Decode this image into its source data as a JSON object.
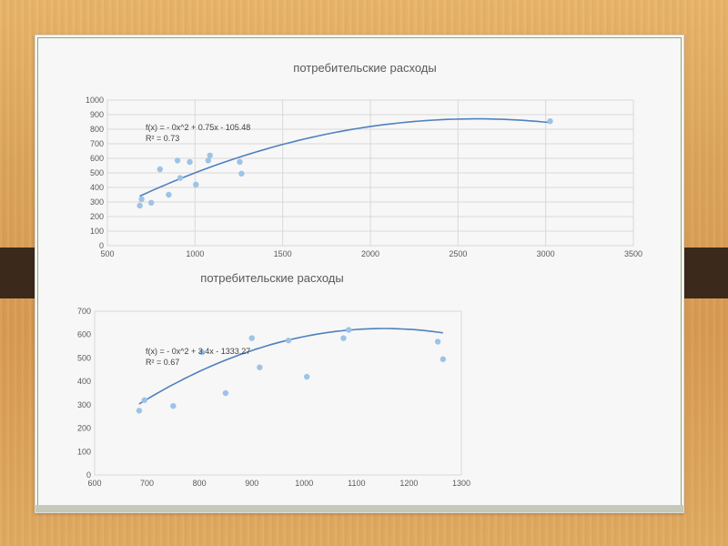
{
  "colors": {
    "trend": "#4f81bd",
    "point": "#9dc3e6",
    "grid": "#d9d9d9",
    "text": "#595959"
  },
  "chart_data": [
    {
      "type": "scatter",
      "title": "потребительские расходы",
      "xlim": [
        500,
        3500
      ],
      "ylim": [
        0,
        1000
      ],
      "xticks": [
        "500",
        "1000",
        "1500",
        "2000",
        "2500",
        "3000",
        "3500"
      ],
      "yticks": [
        "0",
        "100",
        "200",
        "300",
        "400",
        "500",
        "600",
        "700",
        "800",
        "900",
        "1000"
      ],
      "grid": true,
      "points": [
        [
          685,
          275
        ],
        [
          695,
          320
        ],
        [
          750,
          295
        ],
        [
          800,
          525
        ],
        [
          850,
          350
        ],
        [
          900,
          585
        ],
        [
          915,
          465
        ],
        [
          970,
          575
        ],
        [
          1005,
          420
        ],
        [
          1075,
          585
        ],
        [
          1085,
          620
        ],
        [
          1255,
          575
        ],
        [
          1265,
          495
        ],
        [
          3025,
          855
        ]
      ],
      "trendline": {
        "type": "polynomial",
        "order": 2,
        "a": -0.000144,
        "b": 0.75,
        "c": -105.48,
        "x_range": [
          685,
          3025
        ]
      },
      "equation": "f(x) = - 0x^2 + 0.75x - 105.48",
      "r2": "R² = 0.73"
    },
    {
      "type": "scatter",
      "title": "потребительские расходы",
      "xlim": [
        600,
        1300
      ],
      "ylim": [
        0,
        700
      ],
      "xticks": [
        "600",
        "700",
        "800",
        "900",
        "1000",
        "1100",
        "1200",
        "1300"
      ],
      "yticks": [
        "0",
        "100",
        "200",
        "300",
        "400",
        "500",
        "600",
        "700"
      ],
      "grid": false,
      "points": [
        [
          685,
          275
        ],
        [
          695,
          320
        ],
        [
          750,
          295
        ],
        [
          805,
          525
        ],
        [
          850,
          350
        ],
        [
          900,
          585
        ],
        [
          915,
          460
        ],
        [
          970,
          575
        ],
        [
          1005,
          420
        ],
        [
          1075,
          585
        ],
        [
          1085,
          620
        ],
        [
          1255,
          570
        ],
        [
          1265,
          495
        ]
      ],
      "trendline": {
        "type": "polynomial",
        "order": 2,
        "a": -0.001475,
        "b": 3.4,
        "c": -1333.27,
        "x_range": [
          685,
          1265
        ]
      },
      "equation": "f(x) = - 0x^2 + 3.4x - 1333.27",
      "r2": "R² = 0.67"
    }
  ]
}
